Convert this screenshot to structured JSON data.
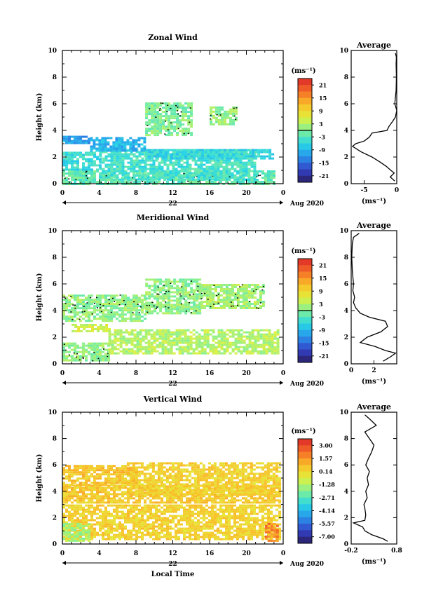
{
  "chart_data": [
    {
      "type": "heatmap",
      "title": "Zonal Wind",
      "xlabel": "",
      "ylabel": "Height (km)",
      "x_ticks": [
        "0",
        "4",
        "8",
        "12",
        "16",
        "20",
        "0"
      ],
      "y_ticks": [
        "0",
        "2",
        "4",
        "6",
        "8",
        "10"
      ],
      "xlim": [
        0,
        24
      ],
      "ylim": [
        0,
        10
      ],
      "date_label": "22",
      "month_label": "Aug 2020",
      "colorbar": {
        "unit": "(ms⁻¹)",
        "ticks": [
          "21",
          "15",
          "9",
          "3",
          "-3",
          "-9",
          "-15",
          "-21"
        ],
        "range": [
          -24,
          24
        ]
      },
      "zero_contour_drawn": true,
      "regions": [
        {
          "x": [
            0,
            23
          ],
          "y": [
            0,
            1
          ],
          "v": -2
        },
        {
          "x": [
            0,
            4
          ],
          "y": [
            1,
            2.4
          ],
          "v": -5
        },
        {
          "x": [
            4,
            21
          ],
          "y": [
            0.3,
            2.6
          ],
          "v": -4
        },
        {
          "x": [
            0,
            3
          ],
          "y": [
            3,
            3.6
          ],
          "v": -11
        },
        {
          "x": [
            3,
            9
          ],
          "y": [
            2.5,
            3.5
          ],
          "v": -9
        },
        {
          "x": [
            9,
            23
          ],
          "y": [
            1.9,
            2.6
          ],
          "v": -6
        },
        {
          "x": [
            9,
            14
          ],
          "y": [
            3.7,
            6.1
          ],
          "v": 0
        },
        {
          "x": [
            16,
            19
          ],
          "y": [
            4.5,
            5.8
          ],
          "v": 1
        }
      ],
      "side_profile": {
        "title": "Average",
        "xlabel": "(ms⁻¹)",
        "xlim": [
          -7,
          0
        ],
        "x_ticks": [
          "-5",
          "0"
        ],
        "height_km": [
          0.2,
          0.5,
          0.8,
          1.0,
          1.3,
          1.6,
          2.0,
          2.4,
          2.8,
          3.0,
          3.2,
          3.5,
          3.8,
          4.0,
          4.3,
          4.7,
          5.0,
          5.5,
          6.0,
          7.0,
          8.0,
          9.0,
          9.5,
          9.8
        ],
        "wind_ms": [
          -0.3,
          -1.0,
          -0.4,
          -0.9,
          -1.6,
          -2.5,
          -3.8,
          -5.5,
          -6.8,
          -6.3,
          -5.0,
          -4.2,
          -3.8,
          -1.5,
          -1.2,
          -0.6,
          -0.2,
          0.0,
          -0.3,
          -0.1,
          -0.05,
          -0.1,
          -0.05,
          -0.2
        ]
      }
    },
    {
      "type": "heatmap",
      "title": "Meridional Wind",
      "xlabel": "",
      "ylabel": "Height (km)",
      "x_ticks": [
        "0",
        "4",
        "8",
        "12",
        "16",
        "20",
        "0"
      ],
      "y_ticks": [
        "0",
        "2",
        "4",
        "6",
        "8",
        "10"
      ],
      "xlim": [
        0,
        24
      ],
      "ylim": [
        0,
        10
      ],
      "date_label": "22",
      "month_label": "Aug 2020",
      "colorbar": {
        "unit": "(ms⁻¹)",
        "ticks": [
          "21",
          "15",
          "9",
          "3",
          "-3",
          "-9",
          "-15",
          "-21"
        ],
        "range": [
          -24,
          24
        ]
      },
      "zero_contour_drawn": true,
      "regions": [
        {
          "x": [
            0,
            5
          ],
          "y": [
            0.2,
            1.6
          ],
          "v": 1
        },
        {
          "x": [
            5,
            23.5
          ],
          "y": [
            0.8,
            2.6
          ],
          "v": 3
        },
        {
          "x": [
            0,
            9
          ],
          "y": [
            3.2,
            5.2
          ],
          "v": 1
        },
        {
          "x": [
            1,
            5
          ],
          "y": [
            2.4,
            3.0
          ],
          "v": 5
        },
        {
          "x": [
            9,
            15
          ],
          "y": [
            3.8,
            6.4
          ],
          "v": 1
        },
        {
          "x": [
            15,
            22
          ],
          "y": [
            4.2,
            6.0
          ],
          "v": 2
        }
      ],
      "side_profile": {
        "title": "Average",
        "xlabel": "(ms⁻¹)",
        "xlim": [
          0,
          4
        ],
        "x_ticks": [
          "0",
          "2"
        ],
        "height_km": [
          0.2,
          0.5,
          0.8,
          1.0,
          1.3,
          1.6,
          2.0,
          2.4,
          2.8,
          3.2,
          3.5,
          3.8,
          4.2,
          4.6,
          5.0,
          5.5,
          6.0,
          7.0,
          8.0,
          9.0,
          9.5,
          9.8
        ],
        "wind_ms": [
          2.8,
          3.4,
          3.9,
          3.0,
          2.1,
          0.8,
          1.4,
          2.6,
          3.2,
          3.0,
          1.6,
          0.8,
          0.4,
          0.2,
          0.3,
          0.15,
          0.2,
          0.1,
          0.05,
          0.1,
          0.2,
          0.7
        ]
      }
    },
    {
      "type": "heatmap",
      "title": "Vertical Wind",
      "xlabel": "Local Time",
      "ylabel": "Height (km)",
      "x_ticks": [
        "0",
        "4",
        "8",
        "12",
        "16",
        "20",
        "0"
      ],
      "y_ticks": [
        "0",
        "2",
        "4",
        "6",
        "8",
        "10"
      ],
      "xlim": [
        0,
        24
      ],
      "ylim": [
        0,
        10
      ],
      "date_label": "22",
      "month_label": "Aug 2020",
      "colorbar": {
        "unit": "(ms⁻¹)",
        "ticks": [
          "3.00",
          "1.57",
          "0.14",
          "-1.28",
          "-2.71",
          "-4.14",
          "-5.57",
          "-7.00"
        ],
        "range": [
          -7.7,
          3.7
        ]
      },
      "regions": [
        {
          "x": [
            0,
            23.5
          ],
          "y": [
            0.4,
            3.0
          ],
          "v": 0.3
        },
        {
          "x": [
            0,
            23.5
          ],
          "y": [
            3.2,
            4.5
          ],
          "v": 0.5
        },
        {
          "x": [
            7,
            23.5
          ],
          "y": [
            3.8,
            6.2
          ],
          "v": 0.3
        },
        {
          "x": [
            0,
            8
          ],
          "y": [
            4.5,
            6.0
          ],
          "v": 0.6
        },
        {
          "x": [
            0,
            3
          ],
          "y": [
            0.3,
            1.6
          ],
          "v": -1.5
        },
        {
          "x": [
            22,
            23.5
          ],
          "y": [
            0.3,
            1.6
          ],
          "v": 1.8
        }
      ],
      "side_profile": {
        "title": "Average",
        "xlabel": "(ms⁻¹)",
        "xlim": [
          -0.2,
          0.8
        ],
        "x_ticks": [
          "-0.2",
          "0.8"
        ],
        "height_km": [
          0.2,
          0.4,
          0.7,
          1.0,
          1.3,
          1.6,
          1.8,
          2.2,
          2.7,
          3.0,
          3.5,
          4.0,
          4.5,
          5.0,
          5.5,
          6.0,
          6.5,
          7.0,
          7.5,
          8.0,
          8.5,
          9.0,
          9.5,
          9.8
        ],
        "wind_ms": [
          0.6,
          0.5,
          0.25,
          0.1,
          0.05,
          -0.15,
          0.1,
          0.12,
          0.1,
          0.08,
          0.15,
          0.12,
          0.18,
          0.15,
          0.2,
          0.12,
          0.18,
          0.25,
          0.3,
          0.2,
          0.1,
          0.35,
          0.2,
          0.1
        ]
      }
    }
  ]
}
